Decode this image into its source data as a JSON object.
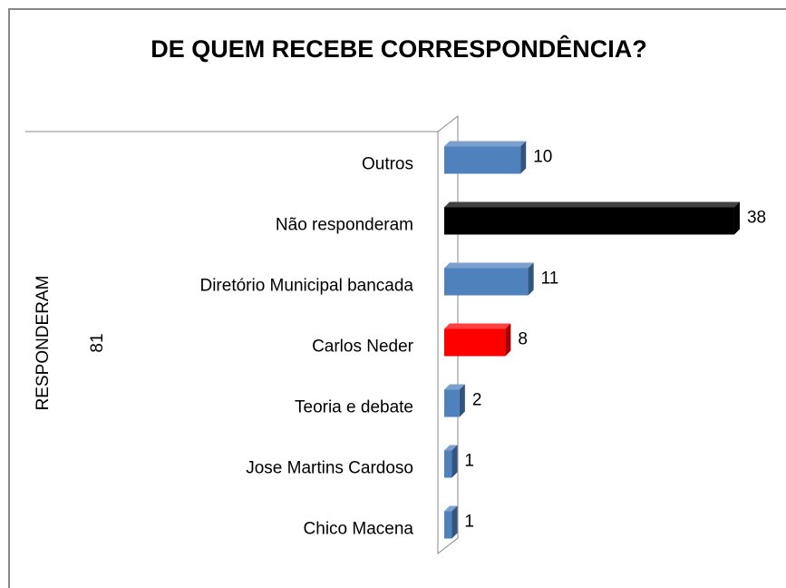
{
  "chart_data": {
    "type": "bar3d_horizontal",
    "title": "DE QUEM RECEBE CORRESPONDÊNCIA?",
    "y_axis_label": "RESPONDERAM",
    "y_group_label": "81",
    "categories": [
      "Outros",
      "Não responderam",
      "Diretório Municipal bancada",
      "Carlos Neder",
      "Teoria e debate",
      "Jose Martins Cardoso",
      "Chico Macena"
    ],
    "values": [
      10,
      38,
      11,
      8,
      2,
      1,
      1
    ],
    "colors": [
      "#4f81bd",
      "#000000",
      "#4f81bd",
      "#ff0000",
      "#4f81bd",
      "#4f81bd",
      "#4f81bd"
    ]
  }
}
